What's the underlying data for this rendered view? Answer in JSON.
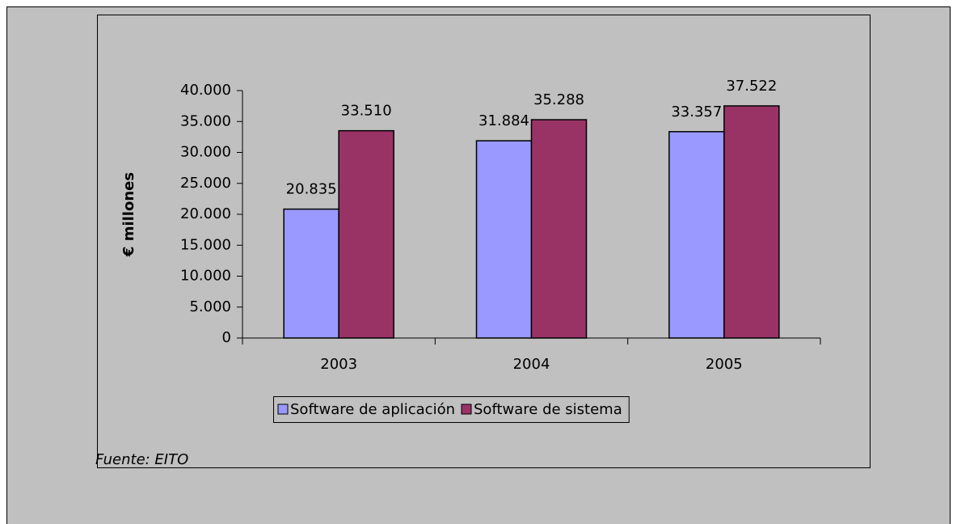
{
  "chart_data": {
    "type": "bar",
    "ylabel": "€ millones",
    "source": "Fuente: EITO",
    "categories": [
      "2003",
      "2004",
      "2005"
    ],
    "series": [
      {
        "name": "Software de aplicación",
        "color": "#9999ff",
        "values": [
          20835,
          31884,
          33357
        ],
        "value_labels": [
          "20.835",
          "31.884",
          "33.357"
        ]
      },
      {
        "name": "Software de sistema",
        "color": "#993366",
        "values": [
          33510,
          35288,
          37522
        ],
        "value_labels": [
          "33.510",
          "35.288",
          "37.522"
        ]
      }
    ],
    "ylim": [
      0,
      40000
    ],
    "yticks": [
      0,
      {
        "value": 5000,
        "label": "5.000"
      },
      {
        "value": 10000,
        "label": "10.000"
      },
      {
        "value": 15000,
        "label": "15.000"
      },
      {
        "value": 20000,
        "label": "20.000"
      },
      {
        "value": 25000,
        "label": "25.000"
      },
      {
        "value": 30000,
        "label": "30.000"
      },
      {
        "value": 35000,
        "label": "35.000"
      },
      {
        "value": 40000,
        "label": "40.000"
      }
    ],
    "grid": false,
    "legend": "bottom"
  }
}
